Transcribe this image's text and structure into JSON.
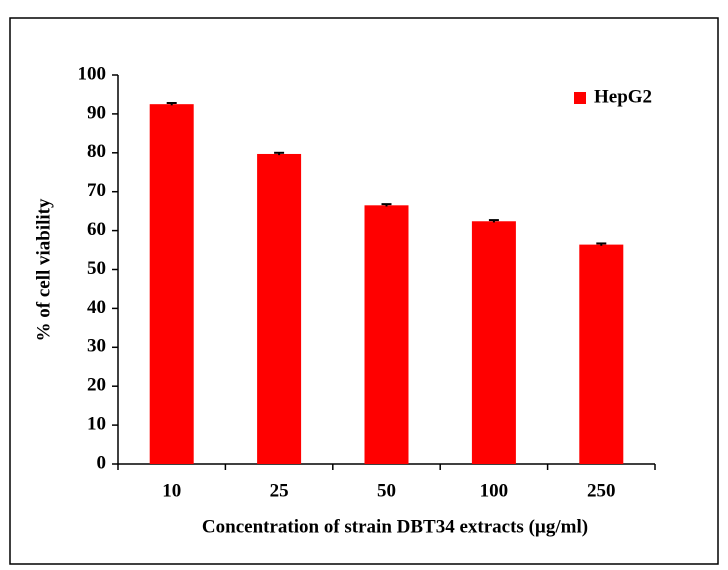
{
  "chart_data": {
    "type": "bar",
    "categories": [
      "10",
      "25",
      "50",
      "100",
      "250"
    ],
    "series": [
      {
        "name": "HepG2",
        "color": "#ff0000",
        "values": [
          92.5,
          79.7,
          66.5,
          62.4,
          56.4
        ],
        "errors": [
          0.3,
          0.3,
          0.3,
          0.3,
          0.3
        ]
      }
    ],
    "xlabel": "Concentration of strain DBT34 extracts (µg/ml)",
    "ylabel": "% of cell viability",
    "ylim": [
      0,
      100
    ],
    "yticks": [
      0,
      10,
      20,
      30,
      40,
      50,
      60,
      70,
      80,
      90,
      100
    ],
    "legend": "upper right",
    "grid": false
  }
}
